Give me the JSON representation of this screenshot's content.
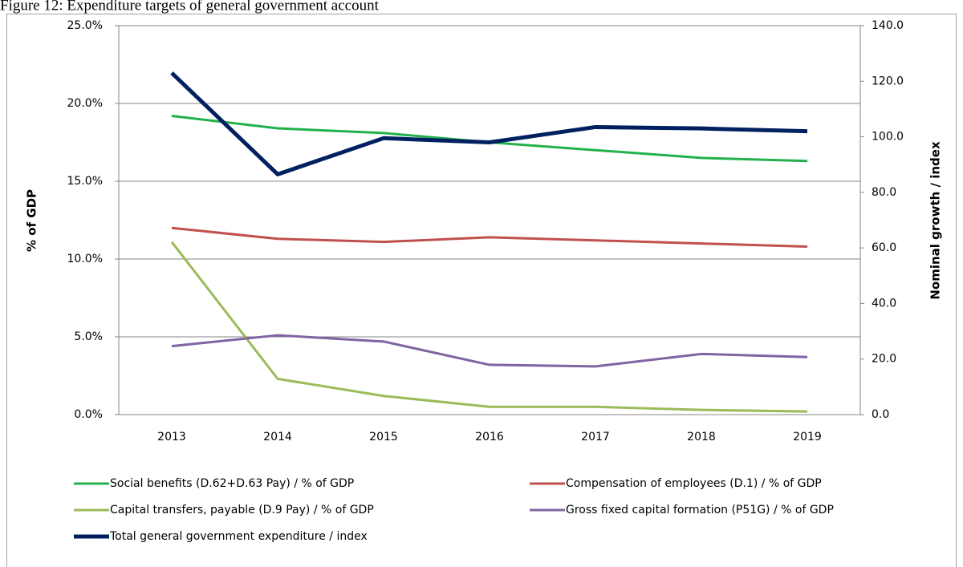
{
  "chart_data": {
    "type": "line",
    "title": "Figure 12: Expenditure targets of general government account",
    "categories": [
      "2013",
      "2014",
      "2015",
      "2016",
      "2017",
      "2018",
      "2019"
    ],
    "ylabel": "% of GDP",
    "y2label": "Nominal growth / index",
    "ylim": [
      0,
      25
    ],
    "yticks": [
      {
        "value": 0,
        "label": "0.0%"
      },
      {
        "value": 5,
        "label": "5.0%"
      },
      {
        "value": 10,
        "label": "10.0%"
      },
      {
        "value": 15,
        "label": "15.0%"
      },
      {
        "value": 20,
        "label": "20.0%"
      },
      {
        "value": 25,
        "label": "25.0%"
      }
    ],
    "y2lim": [
      0,
      140
    ],
    "y2ticks": [
      {
        "value": 0,
        "label": "0.0"
      },
      {
        "value": 20,
        "label": "20.0"
      },
      {
        "value": 40,
        "label": "40.0"
      },
      {
        "value": 60,
        "label": "60.0"
      },
      {
        "value": 80,
        "label": "80.0"
      },
      {
        "value": 100,
        "label": "100.0"
      },
      {
        "value": 120,
        "label": "120.0"
      },
      {
        "value": 140,
        "label": "140.0"
      }
    ],
    "grid": true,
    "legend": "bottom",
    "series": [
      {
        "name": "Social benefits (D.62+D.63 Pay) / % of GDP",
        "color": "#22b14c",
        "values": [
          19.2,
          18.4,
          18.1,
          17.5,
          17.0,
          16.5,
          16.3
        ]
      },
      {
        "name": "Compensation of employees (D.1) / % of GDP",
        "color": "#c0504d",
        "values": [
          12.0,
          11.3,
          11.1,
          11.4,
          11.2,
          11.0,
          10.8
        ]
      },
      {
        "name": "Capital transfers, payable (D.9 Pay) / % of GDP",
        "color": "#9bbb59",
        "values": [
          11.1,
          2.3,
          1.2,
          0.5,
          0.5,
          0.3,
          0.2
        ]
      },
      {
        "name": "Gross fixed capital formation (P51G) / % of GDP",
        "color": "#8064a2",
        "values": [
          4.4,
          5.1,
          4.7,
          3.2,
          3.1,
          3.9,
          3.7
        ]
      },
      {
        "name": "Total general government expenditure / index",
        "color": "#002060",
        "axis": "y2",
        "values": [
          123,
          86.5,
          99.5,
          98,
          103.5,
          103,
          102
        ]
      }
    ]
  }
}
